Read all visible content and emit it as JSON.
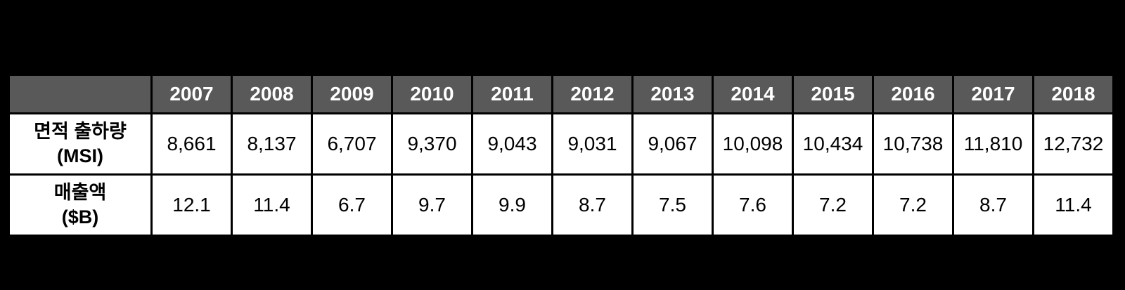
{
  "page": {
    "background_color": "#000000",
    "table_border_color": "#000000",
    "header_bg_color": "#595959",
    "header_text_color": "#ffffff",
    "cell_bg_color": "#ffffff",
    "cell_text_color": "#000000"
  },
  "table": {
    "years": [
      "2007",
      "2008",
      "2009",
      "2010",
      "2011",
      "2012",
      "2013",
      "2014",
      "2015",
      "2016",
      "2017",
      "2018"
    ],
    "rows": [
      {
        "label": "면적 출하량",
        "unit": "(MSI)",
        "values": [
          "8,661",
          "8,137",
          "6,707",
          "9,370",
          "9,043",
          "9,031",
          "9,067",
          "10,098",
          "10,434",
          "10,738",
          "11,810",
          "12,732"
        ]
      },
      {
        "label": "매출액",
        "unit": "($B)",
        "values": [
          "12.1",
          "11.4",
          "6.7",
          "9.7",
          "9.9",
          "8.7",
          "7.5",
          "7.6",
          "7.2",
          "7.2",
          "8.7",
          "11.4"
        ]
      }
    ]
  },
  "chart_data": {
    "type": "table",
    "categories": [
      "2007",
      "2008",
      "2009",
      "2010",
      "2011",
      "2012",
      "2013",
      "2014",
      "2015",
      "2016",
      "2017",
      "2018"
    ],
    "series": [
      {
        "name": "면적 출하량 (MSI)",
        "values": [
          8661,
          8137,
          6707,
          9370,
          9043,
          9031,
          9067,
          10098,
          10434,
          10738,
          11810,
          12732
        ]
      },
      {
        "name": "매출액 ($B)",
        "values": [
          12.1,
          11.4,
          6.7,
          9.7,
          9.9,
          8.7,
          7.5,
          7.6,
          7.2,
          7.2,
          8.7,
          11.4
        ]
      }
    ],
    "title": "",
    "legend_position": "none",
    "grid": true
  }
}
